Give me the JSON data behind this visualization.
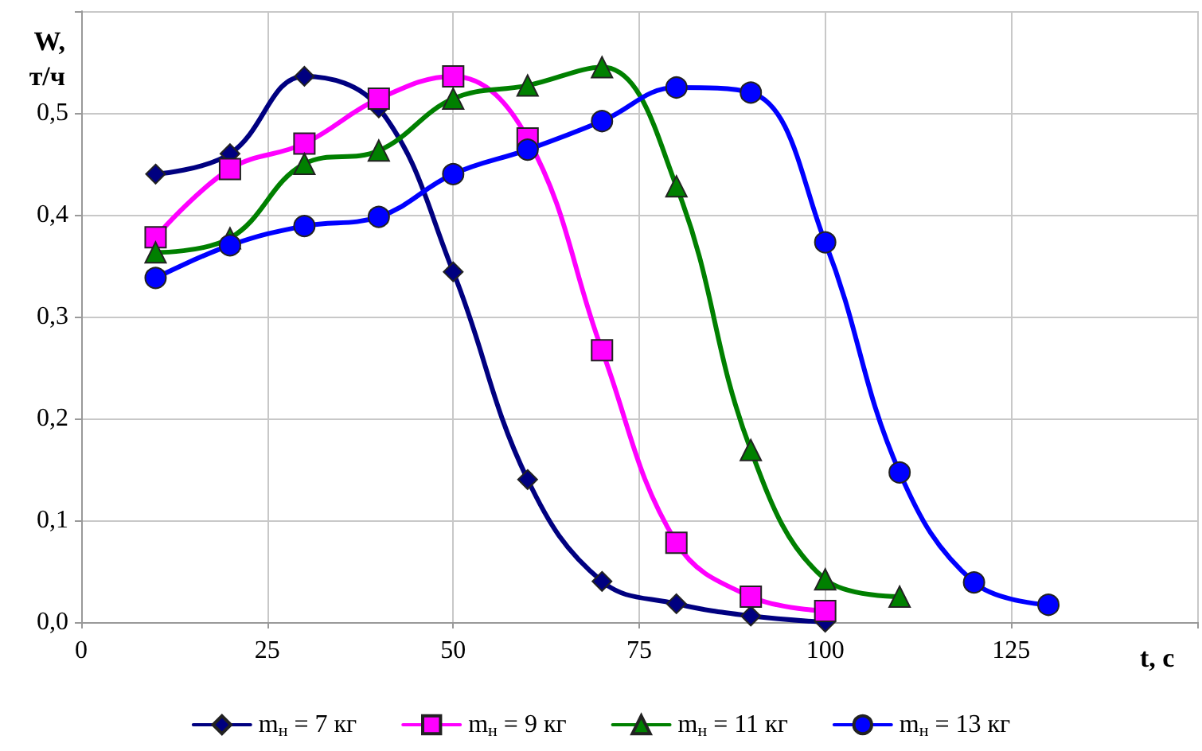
{
  "chart_data": {
    "type": "line",
    "xlabel": "t, c",
    "ylabel": "W,\nт/ч",
    "xlim": [
      0,
      150
    ],
    "xticks": [
      0,
      25,
      50,
      75,
      100,
      125,
      {
        "value": 150,
        "label": null
      }
    ],
    "ylim": [
      0,
      0.6
    ],
    "yticks": [
      {
        "value": 0,
        "label": "0,0"
      },
      {
        "value": 0.1,
        "label": "0,1"
      },
      {
        "value": 0.2,
        "label": "0,2"
      },
      {
        "value": 0.3,
        "label": "0,3"
      },
      {
        "value": 0.4,
        "label": "0,4"
      },
      {
        "value": 0.5,
        "label": "0,5"
      },
      {
        "value": 0.6,
        "label": null
      }
    ],
    "grid": true,
    "legend": "bottom",
    "series": [
      {
        "name": "m$_{н}$ = 7 кг",
        "color": "#000080",
        "marker": "diamond",
        "x": [
          10,
          20,
          30,
          40,
          50,
          60,
          70,
          80,
          90,
          100
        ],
        "values": [
          0.44,
          0.46,
          0.536,
          0.505,
          0.344,
          0.14,
          0.04,
          0.018,
          0.006,
          0.0
        ]
      },
      {
        "name": "m$_{н}$ = 9 кг",
        "color": "#ff00ff",
        "marker": "square",
        "x": [
          10,
          20,
          30,
          40,
          50,
          60,
          70,
          80,
          90,
          100
        ],
        "values": [
          0.378,
          0.445,
          0.47,
          0.514,
          0.536,
          0.475,
          0.267,
          0.078,
          0.025,
          0.011
        ]
      },
      {
        "name": "m$_{н}$ = 11 кг",
        "color": "#008000",
        "marker": "triangle",
        "x": [
          10,
          20,
          30,
          40,
          50,
          60,
          70,
          80,
          90,
          100,
          110
        ],
        "values": [
          0.363,
          0.377,
          0.45,
          0.463,
          0.514,
          0.527,
          0.545,
          0.428,
          0.169,
          0.042,
          0.025
        ]
      },
      {
        "name": "m$_{н}$ = 13 кг",
        "color": "#0000ff",
        "marker": "circle",
        "x": [
          10,
          20,
          30,
          40,
          50,
          60,
          70,
          80,
          90,
          100,
          110,
          120,
          130
        ],
        "values": [
          0.338,
          0.37,
          0.389,
          0.398,
          0.44,
          0.464,
          0.492,
          0.525,
          0.52,
          0.373,
          0.147,
          0.039,
          0.017
        ]
      }
    ]
  }
}
